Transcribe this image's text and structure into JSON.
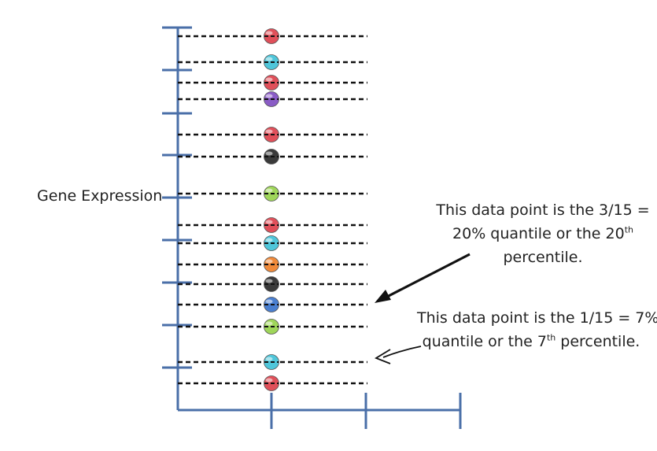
{
  "axis": {
    "ylabel": "Gene Expression"
  },
  "points": [
    {
      "color": "#e0505a"
    },
    {
      "color": "#4fc6da"
    },
    {
      "color": "#e0505a"
    },
    {
      "color": "#8a5cc6"
    },
    {
      "color": "#e0505a"
    },
    {
      "color": "#3a3a3a"
    },
    {
      "color": "#9fd65a"
    },
    {
      "color": "#e0505a"
    },
    {
      "color": "#4fc6da"
    },
    {
      "color": "#f08a3a"
    },
    {
      "color": "#3a3a3a"
    },
    {
      "color": "#4a7fd0"
    },
    {
      "color": "#9fd65a"
    },
    {
      "color": "#4fc6da"
    },
    {
      "color": "#e0505a"
    }
  ],
  "annotations": {
    "note1": {
      "line1": "This data point is the 3/15 =",
      "line2_pre": "20% quantile or the 20",
      "line2_sup": "th",
      "line3": "percentile."
    },
    "note2": {
      "line1": "This data point is the 1/15 = 7%",
      "line2_pre": "quantile or the 7",
      "line2_sup": "th",
      "line2_post": " percentile."
    }
  },
  "colors": {
    "axis": "#4a6fa8",
    "dash": "#111111",
    "arrow": "#111111"
  }
}
